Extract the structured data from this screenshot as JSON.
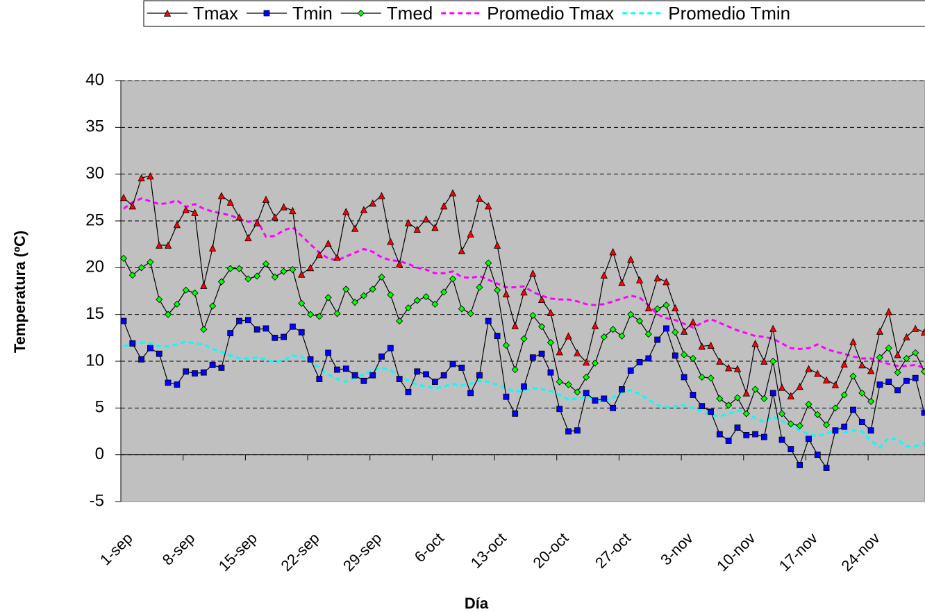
{
  "chart_data": {
    "type": "line",
    "x_label": "Día",
    "y_label": "Temperatura (ºC)",
    "categories": [
      "1-sep",
      null,
      null,
      null,
      null,
      null,
      null,
      "8-sep",
      null,
      null,
      null,
      null,
      null,
      null,
      "15-sep",
      null,
      null,
      null,
      null,
      null,
      null,
      "22-sep",
      null,
      null,
      null,
      null,
      null,
      null,
      "29-sep",
      null,
      null,
      null,
      null,
      null,
      null,
      "6-oct",
      null,
      null,
      null,
      null,
      null,
      null,
      "13-oct",
      null,
      null,
      null,
      null,
      null,
      null,
      "20-oct",
      null,
      null,
      null,
      null,
      null,
      null,
      "27-oct",
      null,
      null,
      null,
      null,
      null,
      null,
      "3-nov",
      null,
      null,
      null,
      null,
      null,
      null,
      "10-nov",
      null,
      null,
      null,
      null,
      null,
      null,
      "17-nov",
      null,
      null,
      null,
      null,
      null,
      null,
      "24-nov",
      null,
      null,
      null,
      null,
      null,
      null
    ],
    "ylim": [
      -5,
      40
    ],
    "yticks": [
      -5,
      0,
      5,
      10,
      15,
      20,
      25,
      30,
      35,
      40
    ],
    "grid": true,
    "grid_dash": true,
    "plot_background": "#c0c0c0",
    "legend": "top",
    "series": [
      {
        "name": "Tmax",
        "color": "#ff0000",
        "line_color": "#000000",
        "marker": "triangle",
        "values": [
          27.5,
          26.6,
          29.6,
          29.8,
          22.4,
          22.4,
          24.6,
          26.2,
          25.9,
          18.1,
          22.1,
          27.7,
          27.0,
          25.4,
          23.2,
          24.8,
          27.3,
          25.4,
          26.5,
          26.1,
          19.3,
          20.0,
          21.4,
          22.6,
          21.1,
          26.0,
          24.2,
          26.2,
          26.9,
          27.7,
          22.8,
          20.4,
          24.8,
          24.1,
          25.2,
          24.3,
          26.6,
          28.0,
          21.8,
          23.6,
          27.4,
          26.6,
          22.4,
          17.2,
          13.8,
          17.4,
          19.4,
          16.6,
          15.2,
          11.0,
          12.7,
          10.9,
          9.9,
          13.8,
          19.2,
          21.7,
          18.4,
          20.9,
          18.7,
          15.7,
          18.9,
          18.5,
          15.7,
          13.2,
          14.2,
          11.6,
          11.7,
          10.0,
          9.3,
          9.2,
          6.6,
          11.9,
          10.0,
          13.5,
          7.2,
          6.3,
          7.3,
          9.2,
          8.7,
          8.0,
          7.5,
          9.7,
          12.1,
          9.6,
          9.0,
          13.2,
          15.3,
          10.7,
          12.6,
          13.5,
          13.1
        ]
      },
      {
        "name": "Tmin",
        "color": "#0000ff",
        "line_color": "#000000",
        "marker": "square",
        "values": [
          14.3,
          11.9,
          10.2,
          11.4,
          10.8,
          7.7,
          7.5,
          8.9,
          8.7,
          8.8,
          9.6,
          9.3,
          13.0,
          14.3,
          14.4,
          13.4,
          13.5,
          12.5,
          12.6,
          13.7,
          13.1,
          10.2,
          8.1,
          10.9,
          9.1,
          9.2,
          8.5,
          7.9,
          8.5,
          10.5,
          11.4,
          8.1,
          6.7,
          8.9,
          8.6,
          7.8,
          8.5,
          9.7,
          9.3,
          6.6,
          8.5,
          14.3,
          12.7,
          6.2,
          4.4,
          7.3,
          10.4,
          10.8,
          8.8,
          4.9,
          2.5,
          2.6,
          6.6,
          5.8,
          6.0,
          5.0,
          7.0,
          9.0,
          9.9,
          10.3,
          12.3,
          13.5,
          10.6,
          8.3,
          6.4,
          5.2,
          4.6,
          2.2,
          1.5,
          2.9,
          2.1,
          2.2,
          1.9,
          6.6,
          1.6,
          0.6,
          -1.1,
          1.7,
          0.0,
          -1.4,
          2.6,
          3.0,
          4.8,
          3.5,
          2.6,
          7.5,
          7.8,
          6.9,
          7.9,
          8.2,
          4.5
        ]
      },
      {
        "name": "Tmed",
        "color": "#00ff00",
        "line_color": "#000000",
        "marker": "diamond",
        "values": [
          21.0,
          19.2,
          20.0,
          20.6,
          16.6,
          15.0,
          16.1,
          17.6,
          17.3,
          13.4,
          15.9,
          18.5,
          19.9,
          19.9,
          18.8,
          19.1,
          20.4,
          19.0,
          19.6,
          19.8,
          16.2,
          15.0,
          14.8,
          16.8,
          15.1,
          17.7,
          16.3,
          17.0,
          17.7,
          19.0,
          17.1,
          14.3,
          15.7,
          16.5,
          16.9,
          16.1,
          17.4,
          18.8,
          15.6,
          15.1,
          17.9,
          20.5,
          17.6,
          11.7,
          9.1,
          12.4,
          14.9,
          13.7,
          12.0,
          7.8,
          7.5,
          6.7,
          8.3,
          9.8,
          12.6,
          13.4,
          12.7,
          15.0,
          14.3,
          12.9,
          15.6,
          16.0,
          13.1,
          10.7,
          10.3,
          8.3,
          8.2,
          6.0,
          5.3,
          6.1,
          4.4,
          7.0,
          6.0,
          10.0,
          4.4,
          3.3,
          3.1,
          5.4,
          4.3,
          3.2,
          5.0,
          6.4,
          8.4,
          6.6,
          5.7,
          10.4,
          11.4,
          8.8,
          10.3,
          10.9,
          8.9
        ]
      },
      {
        "name": "Promedio Tmax",
        "color": "#ff00ff",
        "dash": true,
        "values": [
          26.3,
          27.0,
          27.4,
          27.1,
          26.8,
          26.9,
          27.2,
          26.5,
          26.8,
          26.3,
          26.0,
          25.8,
          25.6,
          25.2,
          24.9,
          25.1,
          23.3,
          23.4,
          24.0,
          24.3,
          23.4,
          22.5,
          21.6,
          21.0,
          20.8,
          21.2,
          21.6,
          22.0,
          21.7,
          21.1,
          20.8,
          20.7,
          20.4,
          20.0,
          19.8,
          19.4,
          19.4,
          19.6,
          19.0,
          18.9,
          19.1,
          18.7,
          18.3,
          17.9,
          17.9,
          18.0,
          17.4,
          17.0,
          16.7,
          16.6,
          16.6,
          16.4,
          16.1,
          16.0,
          16.1,
          16.4,
          16.7,
          17.0,
          16.8,
          16.0,
          15.0,
          14.6,
          14.4,
          14.0,
          13.6,
          14.1,
          14.5,
          14.1,
          13.7,
          13.3,
          13.0,
          12.7,
          12.6,
          12.4,
          11.9,
          11.4,
          11.3,
          11.4,
          11.8,
          11.3,
          11.0,
          10.8,
          10.5,
          10.3,
          10.3,
          10.0,
          9.7,
          9.5,
          9.5,
          9.6,
          9.3
        ]
      },
      {
        "name": "Promedio Tmin",
        "color": "#00ffff",
        "dash": true,
        "values": [
          11.6,
          11.8,
          12.0,
          11.9,
          11.6,
          11.6,
          11.8,
          12.1,
          11.9,
          11.8,
          11.3,
          11.0,
          10.6,
          10.3,
          10.3,
          10.4,
          10.2,
          9.9,
          10.1,
          10.6,
          10.5,
          9.9,
          9.3,
          8.6,
          8.1,
          7.8,
          8.2,
          8.6,
          9.0,
          9.3,
          9.0,
          8.4,
          7.9,
          7.5,
          7.3,
          7.1,
          7.3,
          7.6,
          7.4,
          7.6,
          7.9,
          7.8,
          7.5,
          7.1,
          6.7,
          6.9,
          7.1,
          7.0,
          6.8,
          6.4,
          5.9,
          6.0,
          6.2,
          5.9,
          5.7,
          6.1,
          6.6,
          6.9,
          6.5,
          5.9,
          5.3,
          5.1,
          5.2,
          5.3,
          5.0,
          4.6,
          4.3,
          4.1,
          4.4,
          4.7,
          4.6,
          3.9,
          3.5,
          4.1,
          3.6,
          3.1,
          2.6,
          2.2,
          2.0,
          2.3,
          2.6,
          2.4,
          2.6,
          2.5,
          1.5,
          0.8,
          1.8,
          1.6,
          0.9,
          0.9,
          1.3
        ]
      }
    ]
  }
}
